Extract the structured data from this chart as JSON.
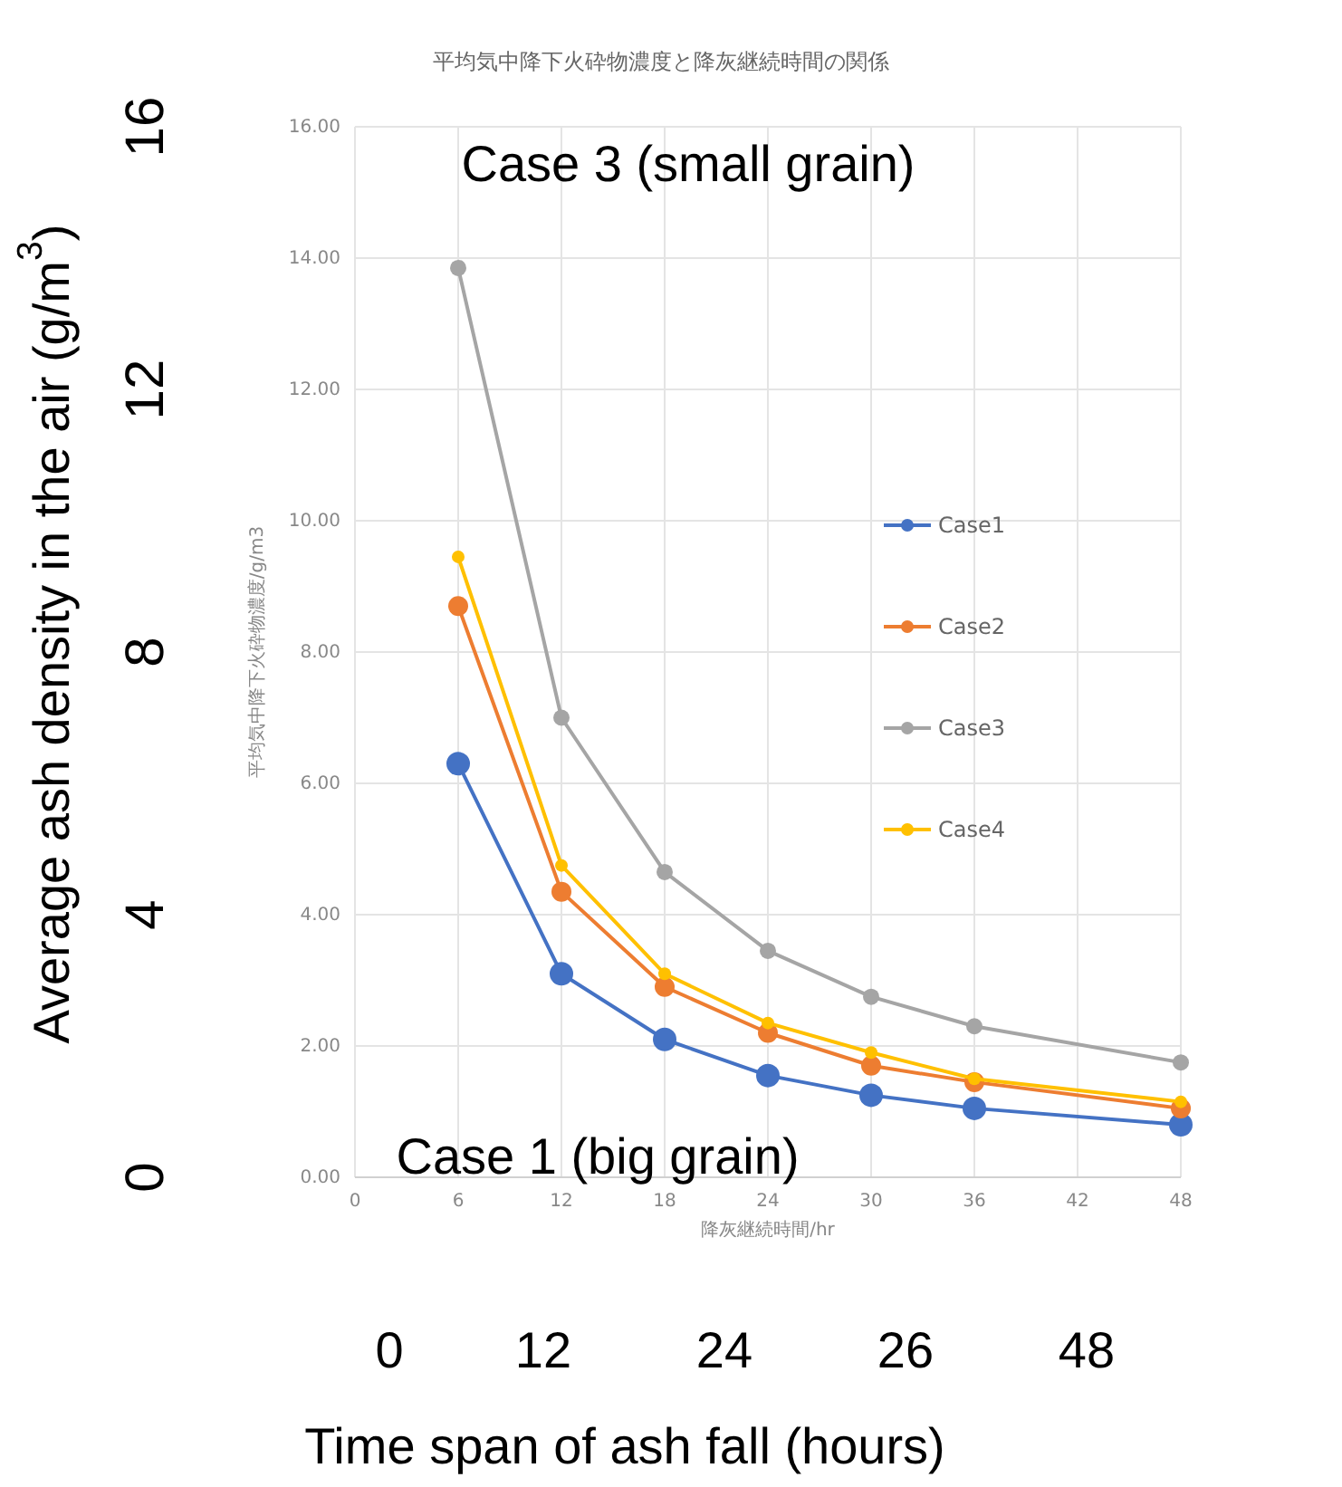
{
  "chart_data": {
    "type": "line",
    "title": "平均気中降下火砕物濃度と降灰継続時間の関係",
    "xlabel": "降灰継続時間/hr",
    "ylabel": "平均気中降下火砕物濃度/g/m3",
    "y2label": "Average ash density in the air (g/m$^{3}$)",
    "x": [
      6,
      12,
      18,
      24,
      30,
      36,
      48
    ],
    "series": [
      {
        "name": "Case1",
        "color": "#4472c4",
        "values": [
          6.3,
          3.1,
          2.1,
          1.55,
          1.25,
          1.05,
          0.8
        ]
      },
      {
        "name": "Case2",
        "color": "#ed7d31",
        "values": [
          8.7,
          4.35,
          2.9,
          2.2,
          1.7,
          1.45,
          1.05
        ]
      },
      {
        "name": "Case3",
        "color": "#a5a5a5",
        "values": [
          13.85,
          7.0,
          4.65,
          3.45,
          2.75,
          2.3,
          1.75
        ]
      },
      {
        "name": "Case4",
        "color": "#ffc000",
        "values": [
          9.45,
          4.75,
          3.1,
          2.35,
          1.9,
          1.5,
          1.15
        ]
      }
    ],
    "xlim": [
      0,
      48
    ],
    "xticks": [
      0,
      6,
      12,
      18,
      24,
      30,
      36,
      42,
      48
    ],
    "ylim": [
      0,
      16
    ],
    "yticks": [
      {
        "value": 0,
        "label": "0.00"
      },
      {
        "value": 2,
        "label": "2.00"
      },
      {
        "value": 4,
        "label": "4.00"
      },
      {
        "value": 6,
        "label": "6.00"
      },
      {
        "value": 8,
        "label": "8.00"
      },
      {
        "value": 10,
        "label": "10.00"
      },
      {
        "value": 12,
        "label": "12.00"
      },
      {
        "value": 14,
        "label": "14.00"
      },
      {
        "value": 16,
        "label": "16.00"
      }
    ],
    "y2lim": [
      0,
      16
    ],
    "y2ticks": [
      0,
      4,
      8,
      12,
      16
    ],
    "annotations": [
      "Case 3 (small grain)",
      "Case 1 (big grain)",
      "0",
      "12",
      "24",
      "26",
      "48",
      "Time span of ash fall (hours)"
    ],
    "grid": true,
    "legend": "right",
    "marker": "circle",
    "line_style": "solid"
  }
}
